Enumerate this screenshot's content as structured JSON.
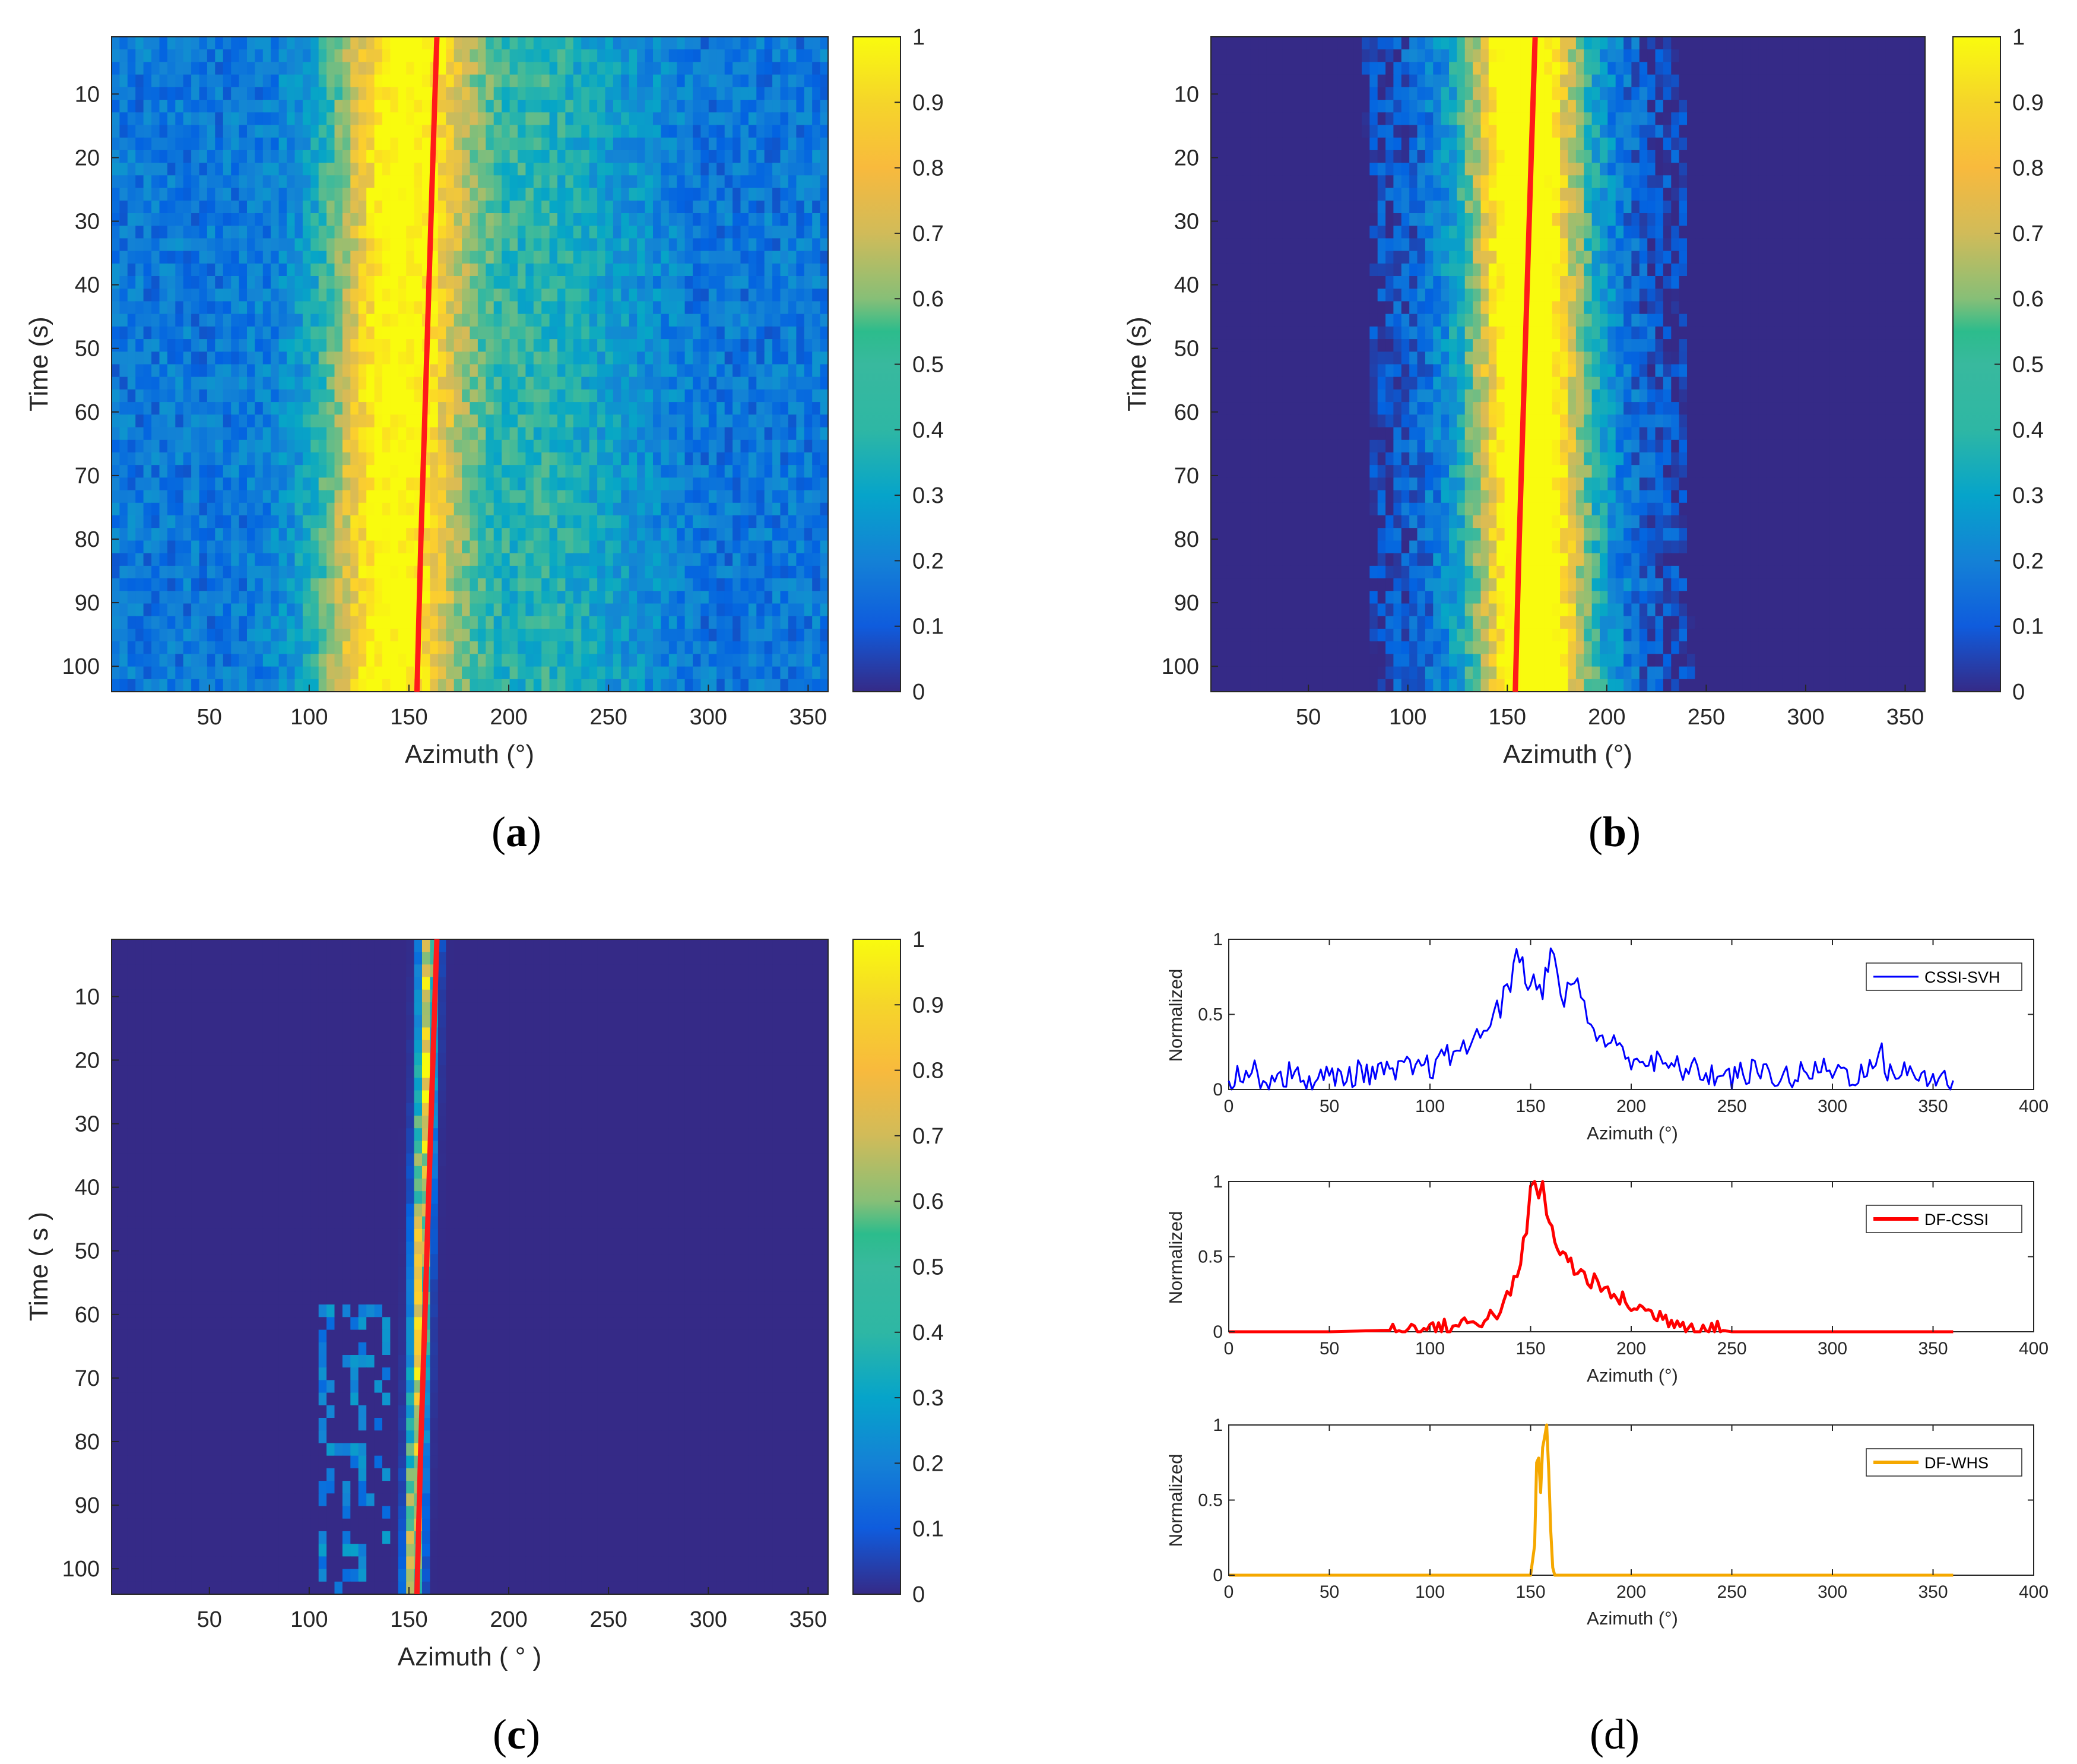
{
  "chart_data": [
    {
      "id": "a",
      "type": "heatmap",
      "panel_label": "a",
      "xlabel": "Azimuth (°)",
      "ylabel": "Time (s)",
      "xlim": [
        1,
        360
      ],
      "ylim": [
        1,
        104
      ],
      "y_direction": "reversed",
      "xticks": [
        50,
        100,
        150,
        200,
        250,
        300,
        350
      ],
      "yticks": [
        10,
        20,
        30,
        40,
        50,
        60,
        70,
        80,
        90,
        100
      ],
      "colorbar": {
        "range": [
          0,
          1
        ],
        "ticks": [
          0,
          0.1,
          0.2,
          0.3,
          0.4,
          0.5,
          0.6,
          0.7,
          0.8,
          0.9,
          1
        ]
      },
      "peak": {
        "center_start": 148,
        "center_end": 140,
        "width": 25,
        "background": 0.2
      },
      "track": {
        "color": "#ff1a1a",
        "azimuth": [
          164,
          162,
          160,
          158,
          156,
          154
        ],
        "time": [
          1,
          20,
          40,
          60,
          80,
          104
        ]
      }
    },
    {
      "id": "b",
      "type": "heatmap",
      "panel_label": "b",
      "xlabel": "Azimuth (°)",
      "ylabel": "Time (s)",
      "xlim": [
        1,
        360
      ],
      "ylim": [
        1,
        104
      ],
      "y_direction": "reversed",
      "xticks": [
        50,
        100,
        150,
        200,
        250,
        300,
        350
      ],
      "yticks": [
        10,
        20,
        30,
        40,
        50,
        60,
        70,
        80,
        90,
        100
      ],
      "colorbar": {
        "range": [
          0,
          1
        ],
        "ticks": [
          0,
          0.1,
          0.2,
          0.3,
          0.4,
          0.5,
          0.6,
          0.7,
          0.8,
          0.9,
          1
        ]
      },
      "peak": {
        "center_start": 158,
        "center_end": 163,
        "width": 20,
        "background": 0.0
      },
      "track": {
        "color": "#ff1a1a",
        "azimuth": [
          164,
          162,
          160,
          158,
          156,
          154
        ],
        "time": [
          1,
          20,
          40,
          60,
          80,
          104
        ]
      }
    },
    {
      "id": "c",
      "type": "heatmap",
      "panel_label": "c",
      "xlabel": "Azimuth  ( ° )",
      "ylabel": "Time ( s )",
      "xlim": [
        1,
        360
      ],
      "ylim": [
        1,
        104
      ],
      "y_direction": "reversed",
      "xticks": [
        50,
        100,
        150,
        200,
        250,
        300,
        350
      ],
      "yticks": [
        10,
        20,
        30,
        40,
        50,
        60,
        70,
        80,
        90,
        100
      ],
      "colorbar": {
        "range": [
          0,
          1
        ],
        "ticks": [
          0,
          0.1,
          0.2,
          0.3,
          0.4,
          0.5,
          0.6,
          0.7,
          0.8,
          0.9,
          1
        ]
      },
      "peak": {
        "center_start": 160,
        "center_end": 152,
        "width": 3,
        "background": 0.0
      },
      "track": {
        "color": "#ff1a1a",
        "azimuth": [
          164,
          162,
          160,
          158,
          156,
          154
        ],
        "time": [
          1,
          20,
          40,
          60,
          80,
          104
        ]
      }
    },
    {
      "id": "d1",
      "type": "line",
      "xlabel": "Azimuth (°)",
      "ylabel": "Normalized",
      "xlim": [
        0,
        400
      ],
      "ylim": [
        0,
        1
      ],
      "xticks": [
        0,
        50,
        100,
        150,
        200,
        250,
        300,
        350,
        400
      ],
      "yticks": [
        0,
        0.5,
        1
      ],
      "series": [
        {
          "name": "CSSI-SVH",
          "color": "#0000ff"
        }
      ],
      "x": [
        0,
        10,
        20,
        30,
        40,
        50,
        60,
        70,
        80,
        90,
        100,
        110,
        115,
        120,
        125,
        130,
        135,
        140,
        143,
        146,
        150,
        153,
        156,
        160,
        165,
        170,
        175,
        180,
        190,
        200,
        210,
        220,
        230,
        240,
        250,
        260,
        270,
        280,
        290,
        300,
        310,
        320,
        323,
        326,
        330,
        340,
        350,
        360
      ],
      "values": [
        0.08,
        0.12,
        0.07,
        0.1,
        0.06,
        0.08,
        0.1,
        0.12,
        0.1,
        0.14,
        0.15,
        0.22,
        0.3,
        0.28,
        0.35,
        0.5,
        0.55,
        0.7,
        1.0,
        0.8,
        0.65,
        0.75,
        0.68,
        0.95,
        0.6,
        0.7,
        0.65,
        0.4,
        0.3,
        0.22,
        0.18,
        0.15,
        0.13,
        0.1,
        0.08,
        0.12,
        0.1,
        0.08,
        0.12,
        0.14,
        0.1,
        0.12,
        0.3,
        0.15,
        0.12,
        0.1,
        0.08,
        0.06
      ]
    },
    {
      "id": "d2",
      "type": "line",
      "xlabel": "Azimuth (°)",
      "ylabel": "Normalized",
      "xlim": [
        0,
        400
      ],
      "ylim": [
        0,
        1
      ],
      "xticks": [
        0,
        50,
        100,
        150,
        200,
        250,
        300,
        350,
        400
      ],
      "yticks": [
        0,
        0.5,
        1
      ],
      "series": [
        {
          "name": "DF-CSSI",
          "color": "#ff0000"
        }
      ],
      "x": [
        0,
        50,
        80,
        100,
        110,
        120,
        130,
        135,
        140,
        145,
        148,
        150,
        152,
        154,
        156,
        158,
        162,
        166,
        170,
        175,
        180,
        185,
        190,
        200,
        210,
        220,
        230,
        240,
        250,
        300,
        360
      ],
      "values": [
        0,
        0,
        0.01,
        0.02,
        0.03,
        0.06,
        0.1,
        0.15,
        0.25,
        0.45,
        0.7,
        0.95,
        1.0,
        0.85,
        0.98,
        0.8,
        0.6,
        0.52,
        0.45,
        0.38,
        0.35,
        0.28,
        0.25,
        0.18,
        0.12,
        0.08,
        0.04,
        0.02,
        0.0,
        0.0,
        0.0
      ]
    },
    {
      "id": "d3",
      "type": "line",
      "xlabel": "Azimuth (°)",
      "ylabel": "Normalized",
      "xlim": [
        0,
        400
      ],
      "ylim": [
        0,
        1
      ],
      "xticks": [
        0,
        50,
        100,
        150,
        200,
        250,
        300,
        350,
        400
      ],
      "yticks": [
        0,
        0.5,
        1
      ],
      "series": [
        {
          "name": "DF-WHS",
          "color": "#f5a800"
        }
      ],
      "x": [
        0,
        150,
        152,
        153,
        154,
        155,
        156,
        157,
        158,
        159,
        160,
        161,
        162,
        164,
        360
      ],
      "values": [
        0,
        0,
        0.2,
        0.75,
        0.78,
        0.55,
        0.85,
        0.92,
        1.0,
        0.7,
        0.3,
        0.05,
        0,
        0,
        0
      ]
    }
  ],
  "colors": {
    "colormap": [
      "#352a87",
      "#0363e1",
      "#1485d4",
      "#06a7c6",
      "#38b99e",
      "#92bf73",
      "#d9ba56",
      "#fcce2e",
      "#f9fb0e"
    ]
  }
}
